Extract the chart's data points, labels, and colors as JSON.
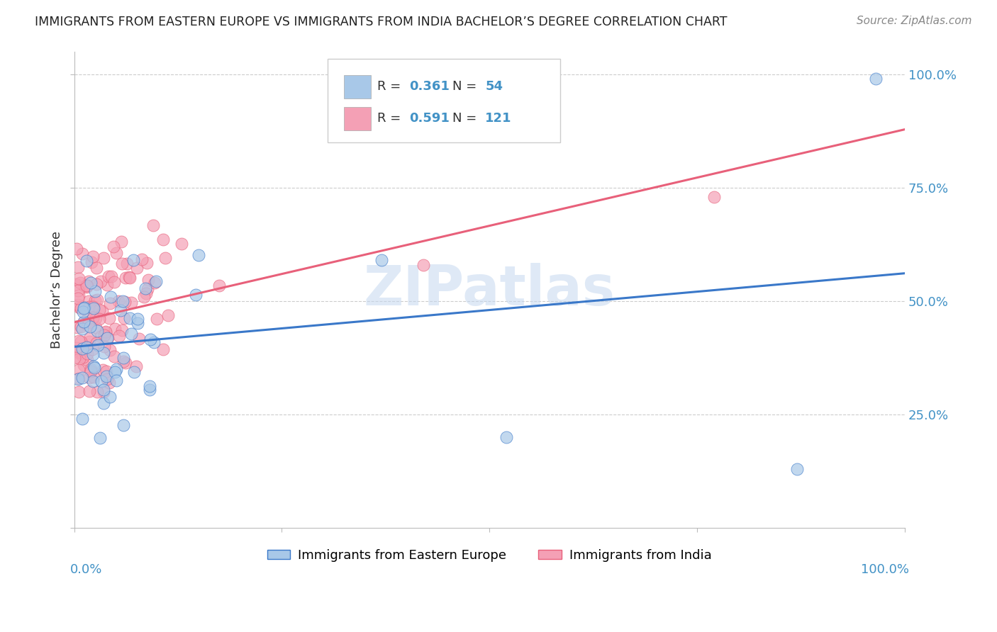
{
  "title": "IMMIGRANTS FROM EASTERN EUROPE VS IMMIGRANTS FROM INDIA BACHELOR’S DEGREE CORRELATION CHART",
  "source": "Source: ZipAtlas.com",
  "ylabel": "Bachelor’s Degree",
  "ytick_labels": [
    "25.0%",
    "50.0%",
    "75.0%",
    "100.0%"
  ],
  "legend_1_label": "Immigrants from Eastern Europe",
  "legend_2_label": "Immigrants from India",
  "R1": "0.361",
  "N1": "54",
  "R2": "0.591",
  "N2": "121",
  "color_blue": "#a8c8e8",
  "color_pink": "#f4a0b5",
  "line_blue": "#3a78c9",
  "line_pink": "#e8607a",
  "watermark": "ZIPatlas",
  "xlim": [
    0.0,
    1.0
  ],
  "ylim": [
    0.0,
    1.05
  ],
  "background_color": "#ffffff",
  "grid_color": "#cccccc",
  "text_blue": "#4292c6",
  "scatter_alpha": 0.7
}
